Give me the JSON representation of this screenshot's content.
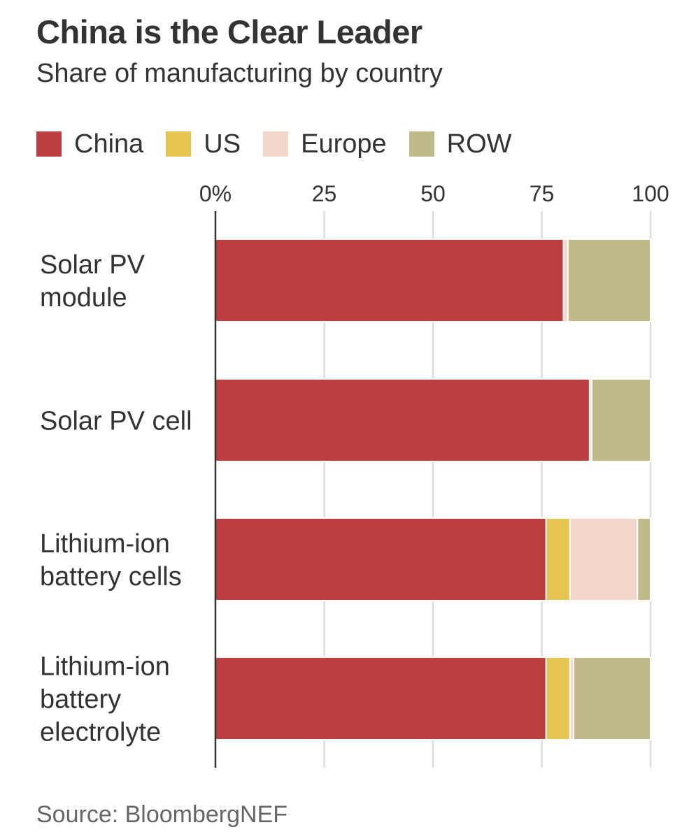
{
  "chart_data": {
    "type": "bar",
    "orientation": "horizontal",
    "stacked": true,
    "title": "China is the Clear Leader",
    "subtitle": "Share of manufacturing by country",
    "source": "Source: BloombergNEF",
    "xlim": [
      0,
      100
    ],
    "x_ticks": [
      "0%",
      "25",
      "50",
      "75",
      "100"
    ],
    "x_tick_values": [
      0,
      25,
      50,
      75,
      100
    ],
    "grid": true,
    "legend_position": "top-left",
    "categories": [
      [
        "Solar PV",
        "module"
      ],
      [
        "Solar PV cell"
      ],
      [
        "Lithium-ion",
        "battery cells"
      ],
      [
        "Lithium-ion",
        "battery",
        "electrolyte"
      ]
    ],
    "series": [
      {
        "name": "China",
        "color": "#bd3e41",
        "values": [
          80,
          86,
          76,
          76
        ]
      },
      {
        "name": "US",
        "color": "#e6c550",
        "values": [
          0,
          0,
          5.5,
          5.5
        ]
      },
      {
        "name": "Europe",
        "color": "#f4d6cb",
        "values": [
          1,
          0.5,
          15.5,
          0.8
        ]
      },
      {
        "name": "ROW",
        "color": "#c0b98a",
        "values": [
          19,
          13.5,
          3,
          17.7
        ]
      }
    ]
  }
}
